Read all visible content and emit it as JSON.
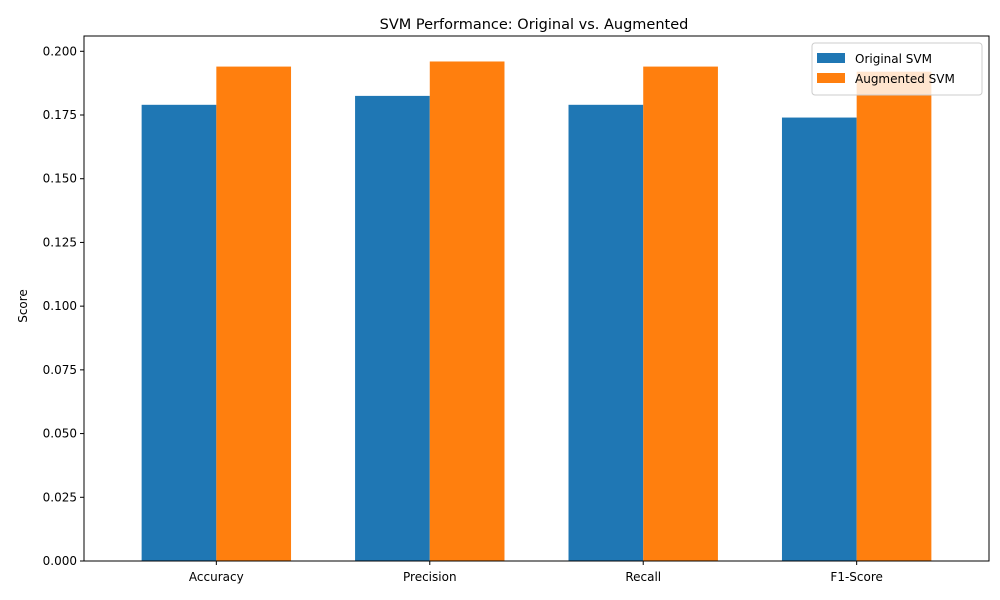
{
  "chart_data": {
    "type": "bar",
    "title": "SVM Performance: Original vs. Augmented",
    "xlabel": "",
    "ylabel": "Score",
    "categories": [
      "Accuracy",
      "Precision",
      "Recall",
      "F1-Score"
    ],
    "series": [
      {
        "name": "Original SVM",
        "color": "#1f77b4",
        "values": [
          0.179,
          0.1825,
          0.179,
          0.174
        ]
      },
      {
        "name": "Augmented SVM",
        "color": "#ff7f0e",
        "values": [
          0.194,
          0.196,
          0.194,
          0.192
        ]
      }
    ],
    "ylim": [
      0,
      0.206
    ],
    "yticks": [
      "0.000",
      "0.025",
      "0.050",
      "0.075",
      "0.100",
      "0.125",
      "0.150",
      "0.175",
      "0.200"
    ],
    "legend_position": "top-right",
    "grid": false
  }
}
